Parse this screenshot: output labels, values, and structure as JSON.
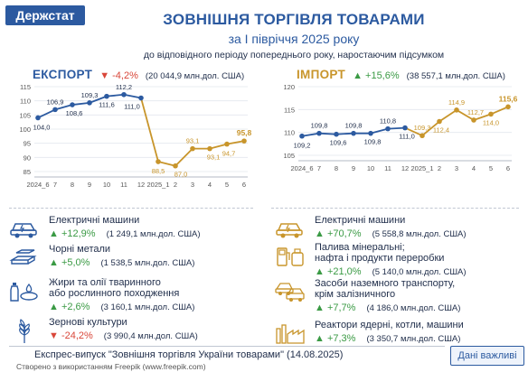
{
  "header": {
    "logo": "Держстат",
    "title": "ЗОВНІШНЯ ТОРГІВЛЯ ТОВАРАМИ",
    "subtitle": "за І півріччя 2025 року",
    "caption_line1": "до відповідного періоду попереднього року, наростаючим підсумком"
  },
  "export": {
    "title": "ЕКСПОРТ",
    "change": "▼ -4,2%",
    "total": "(20 044,9 млн.дол. США)"
  },
  "import": {
    "title": "ІМПОРТ",
    "change": "▲ +15,6%",
    "total": "(38 557,1 млн.дол. США)"
  },
  "chart_data": [
    {
      "type": "line",
      "name": "export",
      "x": [
        "2024_6",
        "7",
        "8",
        "9",
        "10",
        "11",
        "12",
        "2025_1",
        "2",
        "3",
        "4",
        "5",
        "6"
      ],
      "values": [
        104.0,
        106.9,
        108.6,
        109.3,
        111.6,
        112.2,
        111.0,
        88.5,
        87.0,
        93.1,
        93.1,
        94.7,
        95.8
      ],
      "labels": [
        "104,0",
        "106,9",
        "108,6",
        "109,3",
        "111,6",
        "112,2",
        "111,0",
        "88,5",
        "87,0",
        "93,1",
        "93,1",
        "94,7",
        "95,8"
      ],
      "yticks": [
        85,
        90,
        95,
        100,
        105,
        110,
        115
      ],
      "ylim": [
        85,
        115
      ],
      "colors": {
        "2024": "#2c5aa0",
        "2025": "#c8952b"
      }
    },
    {
      "type": "line",
      "name": "import",
      "x": [
        "2024_6",
        "7",
        "8",
        "9",
        "10",
        "11",
        "12",
        "2025_1",
        "2",
        "3",
        "4",
        "5",
        "6"
      ],
      "values": [
        109.2,
        109.8,
        109.6,
        109.8,
        109.8,
        110.8,
        111.0,
        109.3,
        112.4,
        114.9,
        112.7,
        114.0,
        115.6
      ],
      "labels": [
        "109,2",
        "109,8",
        "109,6",
        "109,8",
        "109,8",
        "110,8",
        "111,0",
        "109,3",
        "112,4",
        "114,9",
        "112,7",
        "114,0",
        "115,6"
      ],
      "yticks": [
        105,
        110,
        115,
        120
      ],
      "ylim": [
        105,
        120
      ],
      "colors": {
        "2024": "#2c5aa0",
        "2025": "#c8952b"
      }
    }
  ],
  "export_items": [
    {
      "icon": "electric-car-icon",
      "name": "Електричні машини",
      "change": "▲ +12,9%",
      "value": "(1 249,1 млн.дол. США)"
    },
    {
      "icon": "metal-bars-icon",
      "name": "Чорні метали",
      "change": "▲ +5,0%",
      "value": "(1 538,5 млн.дол. США)"
    },
    {
      "icon": "oil-bottle-icon",
      "name": "Жири та олії тваринного",
      "name2": "або рослинного походження",
      "change": "▲ +2,6%",
      "value": "(3 160,1 млн.дол. США)"
    },
    {
      "icon": "wheat-icon",
      "name": "Зернові культури",
      "change": "▼ -24,2%",
      "value": "(3 990,4 млн.дол. США)"
    }
  ],
  "import_items": [
    {
      "icon": "electric-car-icon",
      "name": "Електричні машини",
      "change": "▲ +70,7%",
      "value": "(5 558,8 млн.дол. США)"
    },
    {
      "icon": "fuel-station-icon",
      "name": "Палива мінеральні;",
      "name2": "нафта і продукти переробки",
      "change": "▲ +21,0%",
      "value": "(5 140,0 млн.дол. США)"
    },
    {
      "icon": "vehicles-icon",
      "name": "Засоби наземного транспорту,",
      "name2": "крім залізничного",
      "change": "▲ +7,7%",
      "value": "(4 186,0 млн.дол. США)"
    },
    {
      "icon": "industrial-plant-icon",
      "name": "Реактори ядерні, котли, машини",
      "change": "▲ +7,3%",
      "value": "(3 350,7 млн.дол. США)"
    }
  ],
  "footer": {
    "text": "Експрес-випуск \"Зовнішня торгівля України товарами\" (14.08.2025)",
    "credit": "Створено з використанням Freepik (www.freepik.com)",
    "badge": "Дані важливі"
  }
}
